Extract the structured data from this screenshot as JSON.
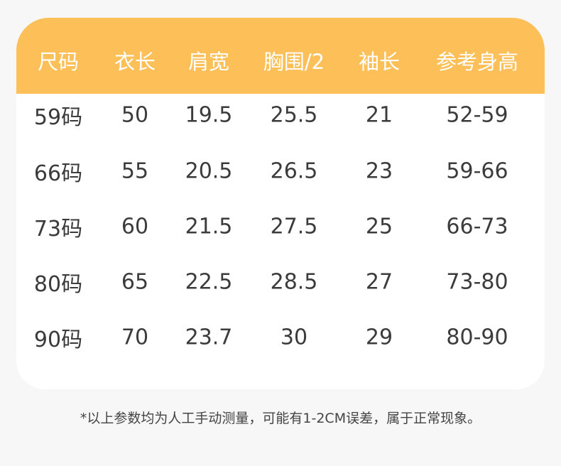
{
  "colors": {
    "header": "#fdbf57",
    "text": "#3b3b3b",
    "background": "#f7f7f8"
  },
  "headers": [
    "尺码",
    "衣长",
    "肩宽",
    "胸围/2",
    "袖长",
    "参考身高"
  ],
  "rows": [
    [
      "59码",
      "50",
      "19.5",
      "25.5",
      "21",
      "52-59"
    ],
    [
      "66码",
      "55",
      "20.5",
      "26.5",
      "23",
      "59-66"
    ],
    [
      "73码",
      "60",
      "21.5",
      "27.5",
      "25",
      "66-73"
    ],
    [
      "80码",
      "65",
      "22.5",
      "28.5",
      "27",
      "73-80"
    ],
    [
      "90码",
      "70",
      "23.7",
      "30",
      "29",
      "80-90"
    ]
  ],
  "note": "*以上参数均为人工手动测量，可能有1-2CM误差，属于正常现象。"
}
